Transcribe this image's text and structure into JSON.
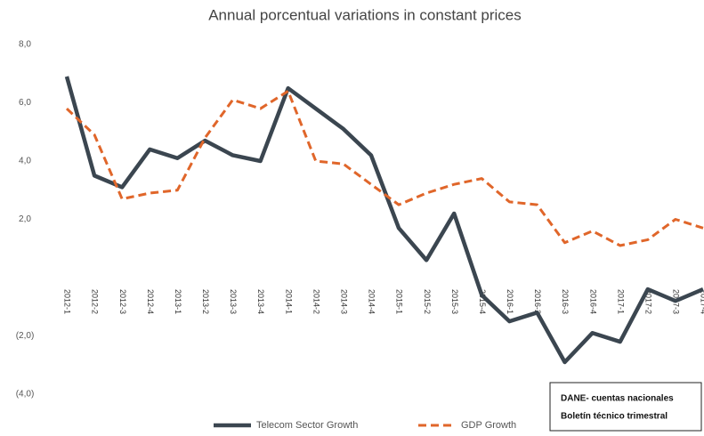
{
  "chart_data": {
    "type": "line",
    "title": "Annual porcentual variations in constant prices",
    "categories": [
      "2012-1",
      "2012-2",
      "2012-3",
      "2012-4",
      "2013-1",
      "2013-2",
      "2013-3",
      "2013-4",
      "2014-1",
      "2014-2",
      "2014-3",
      "2014-4",
      "2015-1",
      "2015-2",
      "2015-3",
      "2015-4",
      "2016-1",
      "2016-2",
      "2016-3",
      "2016-4",
      "2017-1",
      "2017-2",
      "2017-3",
      "2017-4"
    ],
    "series": [
      {
        "name": "Telecom Sector Growth",
        "color": "#3b4650",
        "dash": false,
        "values": [
          6.9,
          3.5,
          3.1,
          4.4,
          4.1,
          4.7,
          4.2,
          4.0,
          6.5,
          5.8,
          5.1,
          4.2,
          1.7,
          0.6,
          2.2,
          -0.6,
          -1.5,
          -1.2,
          -2.9,
          -1.9,
          -2.2,
          -0.4,
          -0.8,
          -0.4
        ]
      },
      {
        "name": "GDP Growth",
        "color": "#e0662a",
        "dash": true,
        "values": [
          5.8,
          4.9,
          2.7,
          2.9,
          3.0,
          4.8,
          6.1,
          5.8,
          6.4,
          4.0,
          3.9,
          3.2,
          2.5,
          2.9,
          3.2,
          3.4,
          2.6,
          2.5,
          1.2,
          1.6,
          1.1,
          1.3,
          2.0,
          1.7
        ]
      }
    ],
    "ylim": [
      -4,
      8
    ],
    "yticks": [
      {
        "value": 8,
        "label": "8,0"
      },
      {
        "value": 6,
        "label": "6,0"
      },
      {
        "value": 4,
        "label": "4,0"
      },
      {
        "value": 2,
        "label": "2,0"
      },
      {
        "value": -2,
        "label": "(2,0)"
      },
      {
        "value": -4,
        "label": "(4,0)"
      }
    ],
    "annotation": [
      "DANE- cuentas nacionales",
      "Boletín técnico trimestral"
    ]
  }
}
